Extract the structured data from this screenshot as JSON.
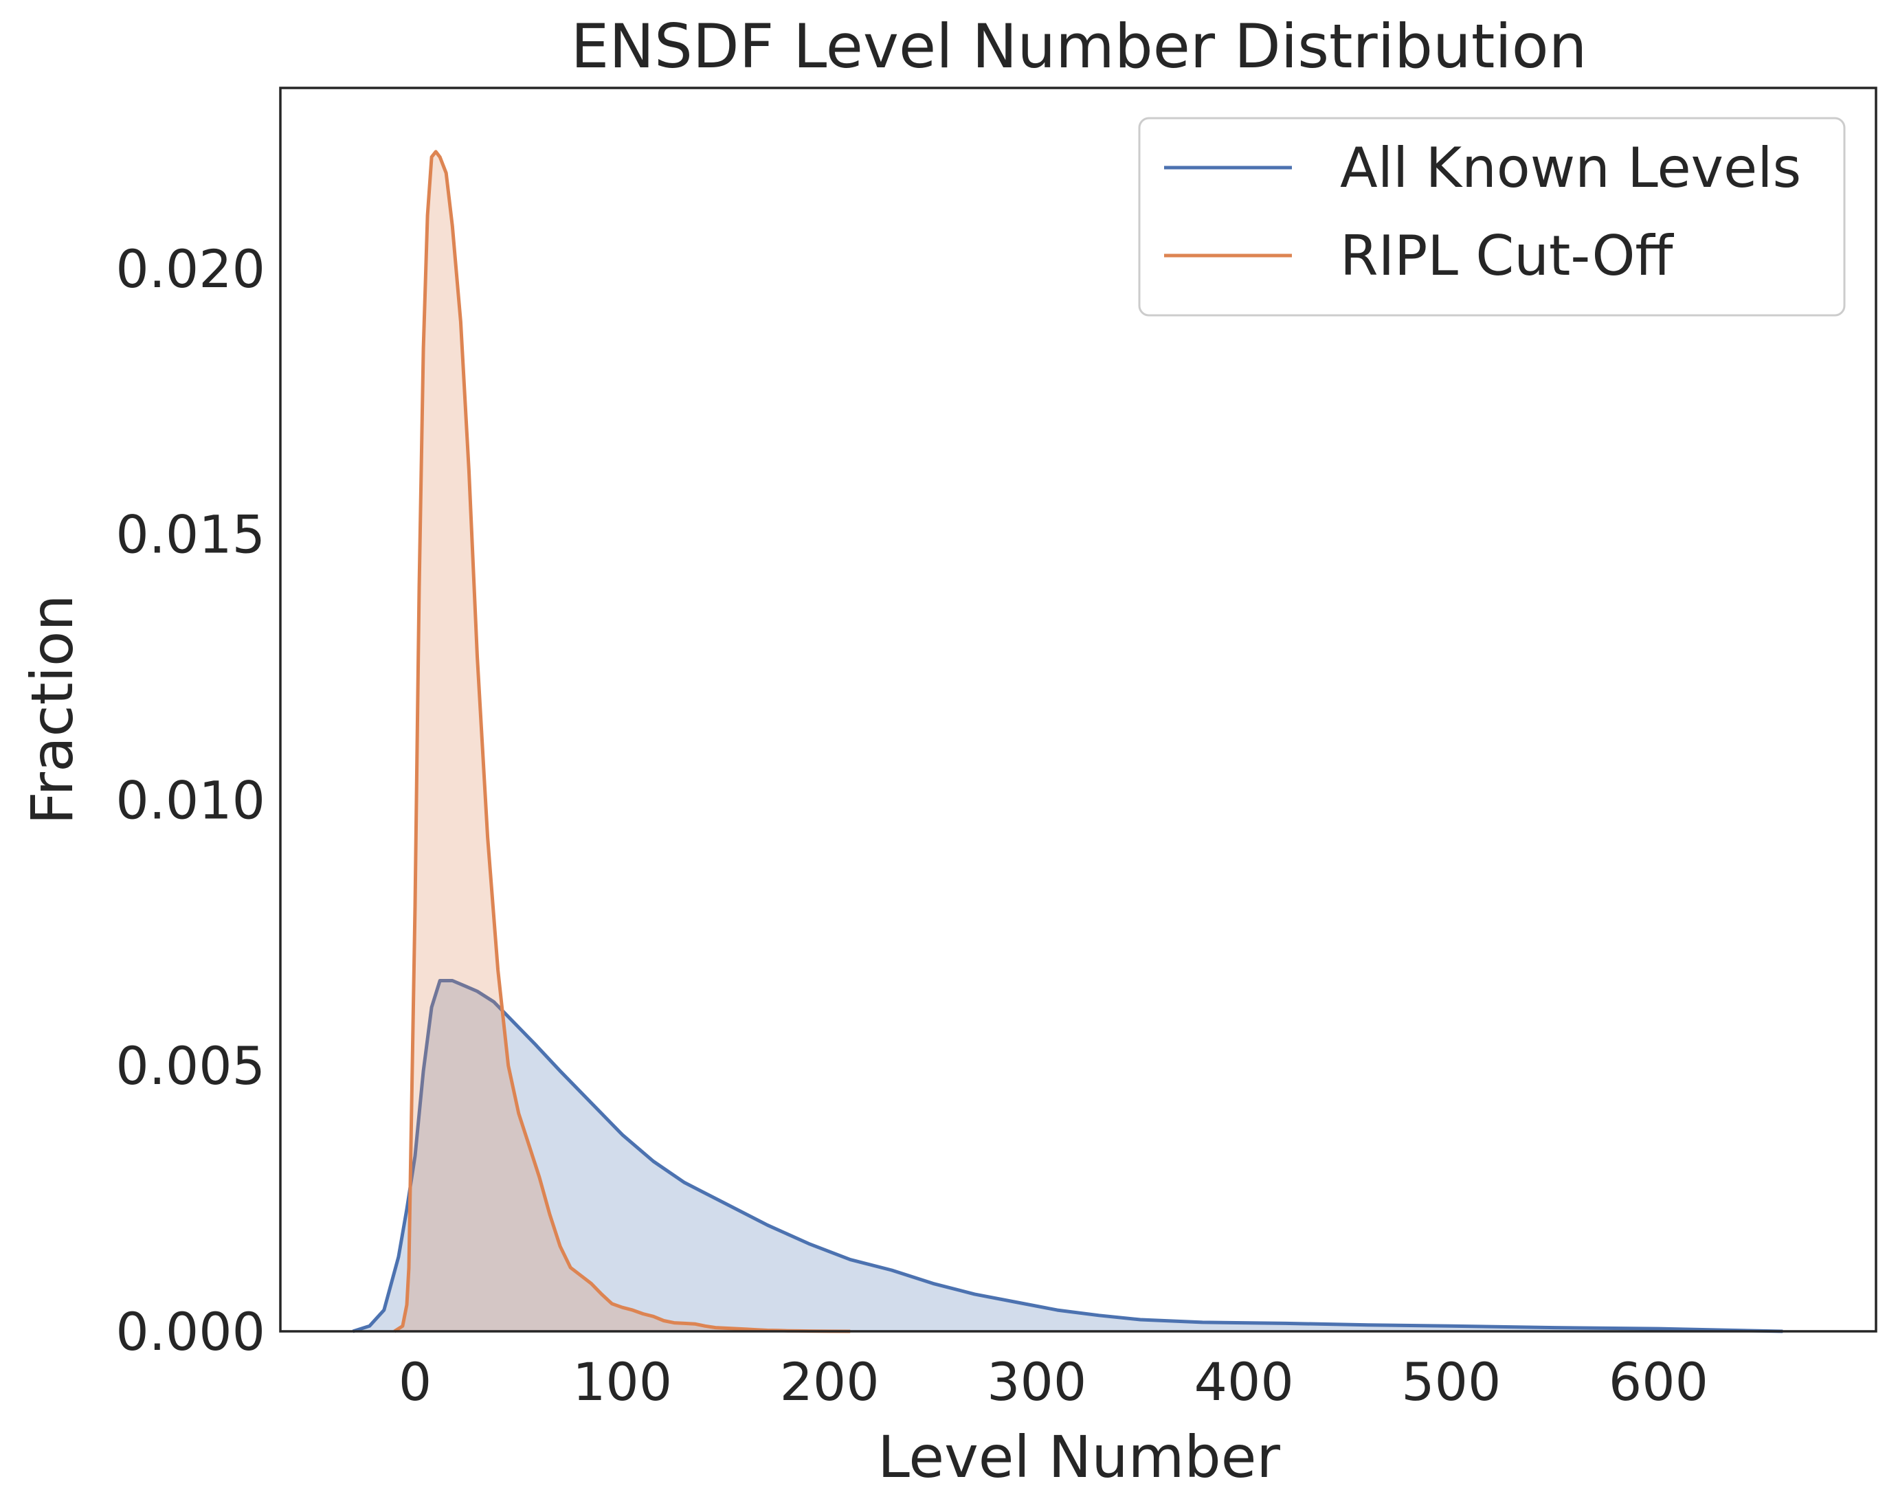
{
  "chart_data": {
    "type": "area",
    "title": "ENSDF Level Number Distribution",
    "xlabel": "Level Number",
    "ylabel": "Fraction",
    "xlim": [
      -65,
      705
    ],
    "ylim": [
      0,
      0.0234
    ],
    "xticks": [
      0,
      100,
      200,
      300,
      400,
      500,
      600
    ],
    "xtick_labels": [
      "0",
      "100",
      "200",
      "300",
      "400",
      "500",
      "600"
    ],
    "yticks": [
      0.0,
      0.005,
      0.01,
      0.015,
      0.02
    ],
    "ytick_labels": [
      "0.000",
      "0.005",
      "0.010",
      "0.015",
      "0.020"
    ],
    "grid": false,
    "legend_position": "top-right",
    "series": [
      {
        "name": "All Known Levels",
        "color": "#4c72b0",
        "fill": "#4c72b0",
        "x": [
          -30,
          -22,
          -15,
          -8,
          -4,
          0,
          4,
          8,
          12,
          18,
          24,
          30,
          38,
          48,
          58,
          70,
          85,
          100,
          115,
          130,
          150,
          170,
          190,
          210,
          230,
          250,
          270,
          290,
          310,
          330,
          350,
          380,
          420,
          460,
          500,
          550,
          600,
          660
        ],
        "y": [
          0.0,
          0.0001,
          0.0004,
          0.0014,
          0.0023,
          0.0033,
          0.0049,
          0.0061,
          0.0066,
          0.0066,
          0.0065,
          0.0064,
          0.0062,
          0.0058,
          0.0054,
          0.0049,
          0.0043,
          0.0037,
          0.0032,
          0.0028,
          0.0024,
          0.002,
          0.00165,
          0.00135,
          0.00115,
          0.0009,
          0.0007,
          0.00055,
          0.0004,
          0.0003,
          0.00022,
          0.00017,
          0.00015,
          0.00012,
          0.0001,
          7e-05,
          5e-05,
          0.0
        ]
      },
      {
        "name": "RIPL Cut-Off",
        "color": "#dd8452",
        "fill": "#dd8452",
        "x": [
          -10,
          -6,
          -4,
          -3,
          -2,
          0,
          2,
          4,
          6,
          8,
          10,
          12,
          15,
          18,
          22,
          26,
          30,
          35,
          40,
          45,
          50,
          55,
          60,
          65,
          70,
          75,
          80,
          85,
          90,
          95,
          100,
          105,
          110,
          115,
          120,
          125,
          130,
          135,
          140,
          145,
          150,
          155,
          160,
          165,
          170,
          175,
          180,
          185,
          190,
          195,
          200,
          210
        ],
        "y": [
          0.0,
          0.0001,
          0.0005,
          0.0012,
          0.0035,
          0.008,
          0.014,
          0.0185,
          0.021,
          0.0221,
          0.0222,
          0.0221,
          0.0218,
          0.0208,
          0.019,
          0.0162,
          0.0127,
          0.0093,
          0.0068,
          0.005,
          0.0041,
          0.0035,
          0.0029,
          0.0022,
          0.0016,
          0.0012,
          0.00105,
          0.0009,
          0.0007,
          0.00052,
          0.00045,
          0.0004,
          0.00033,
          0.00028,
          0.0002,
          0.00016,
          0.00015,
          0.00014,
          0.0001,
          7e-05,
          6e-05,
          5e-05,
          4e-05,
          3e-05,
          2e-05,
          1.5e-05,
          1e-05,
          8e-06,
          5e-06,
          3e-06,
          1e-06,
          0.0
        ]
      }
    ]
  }
}
